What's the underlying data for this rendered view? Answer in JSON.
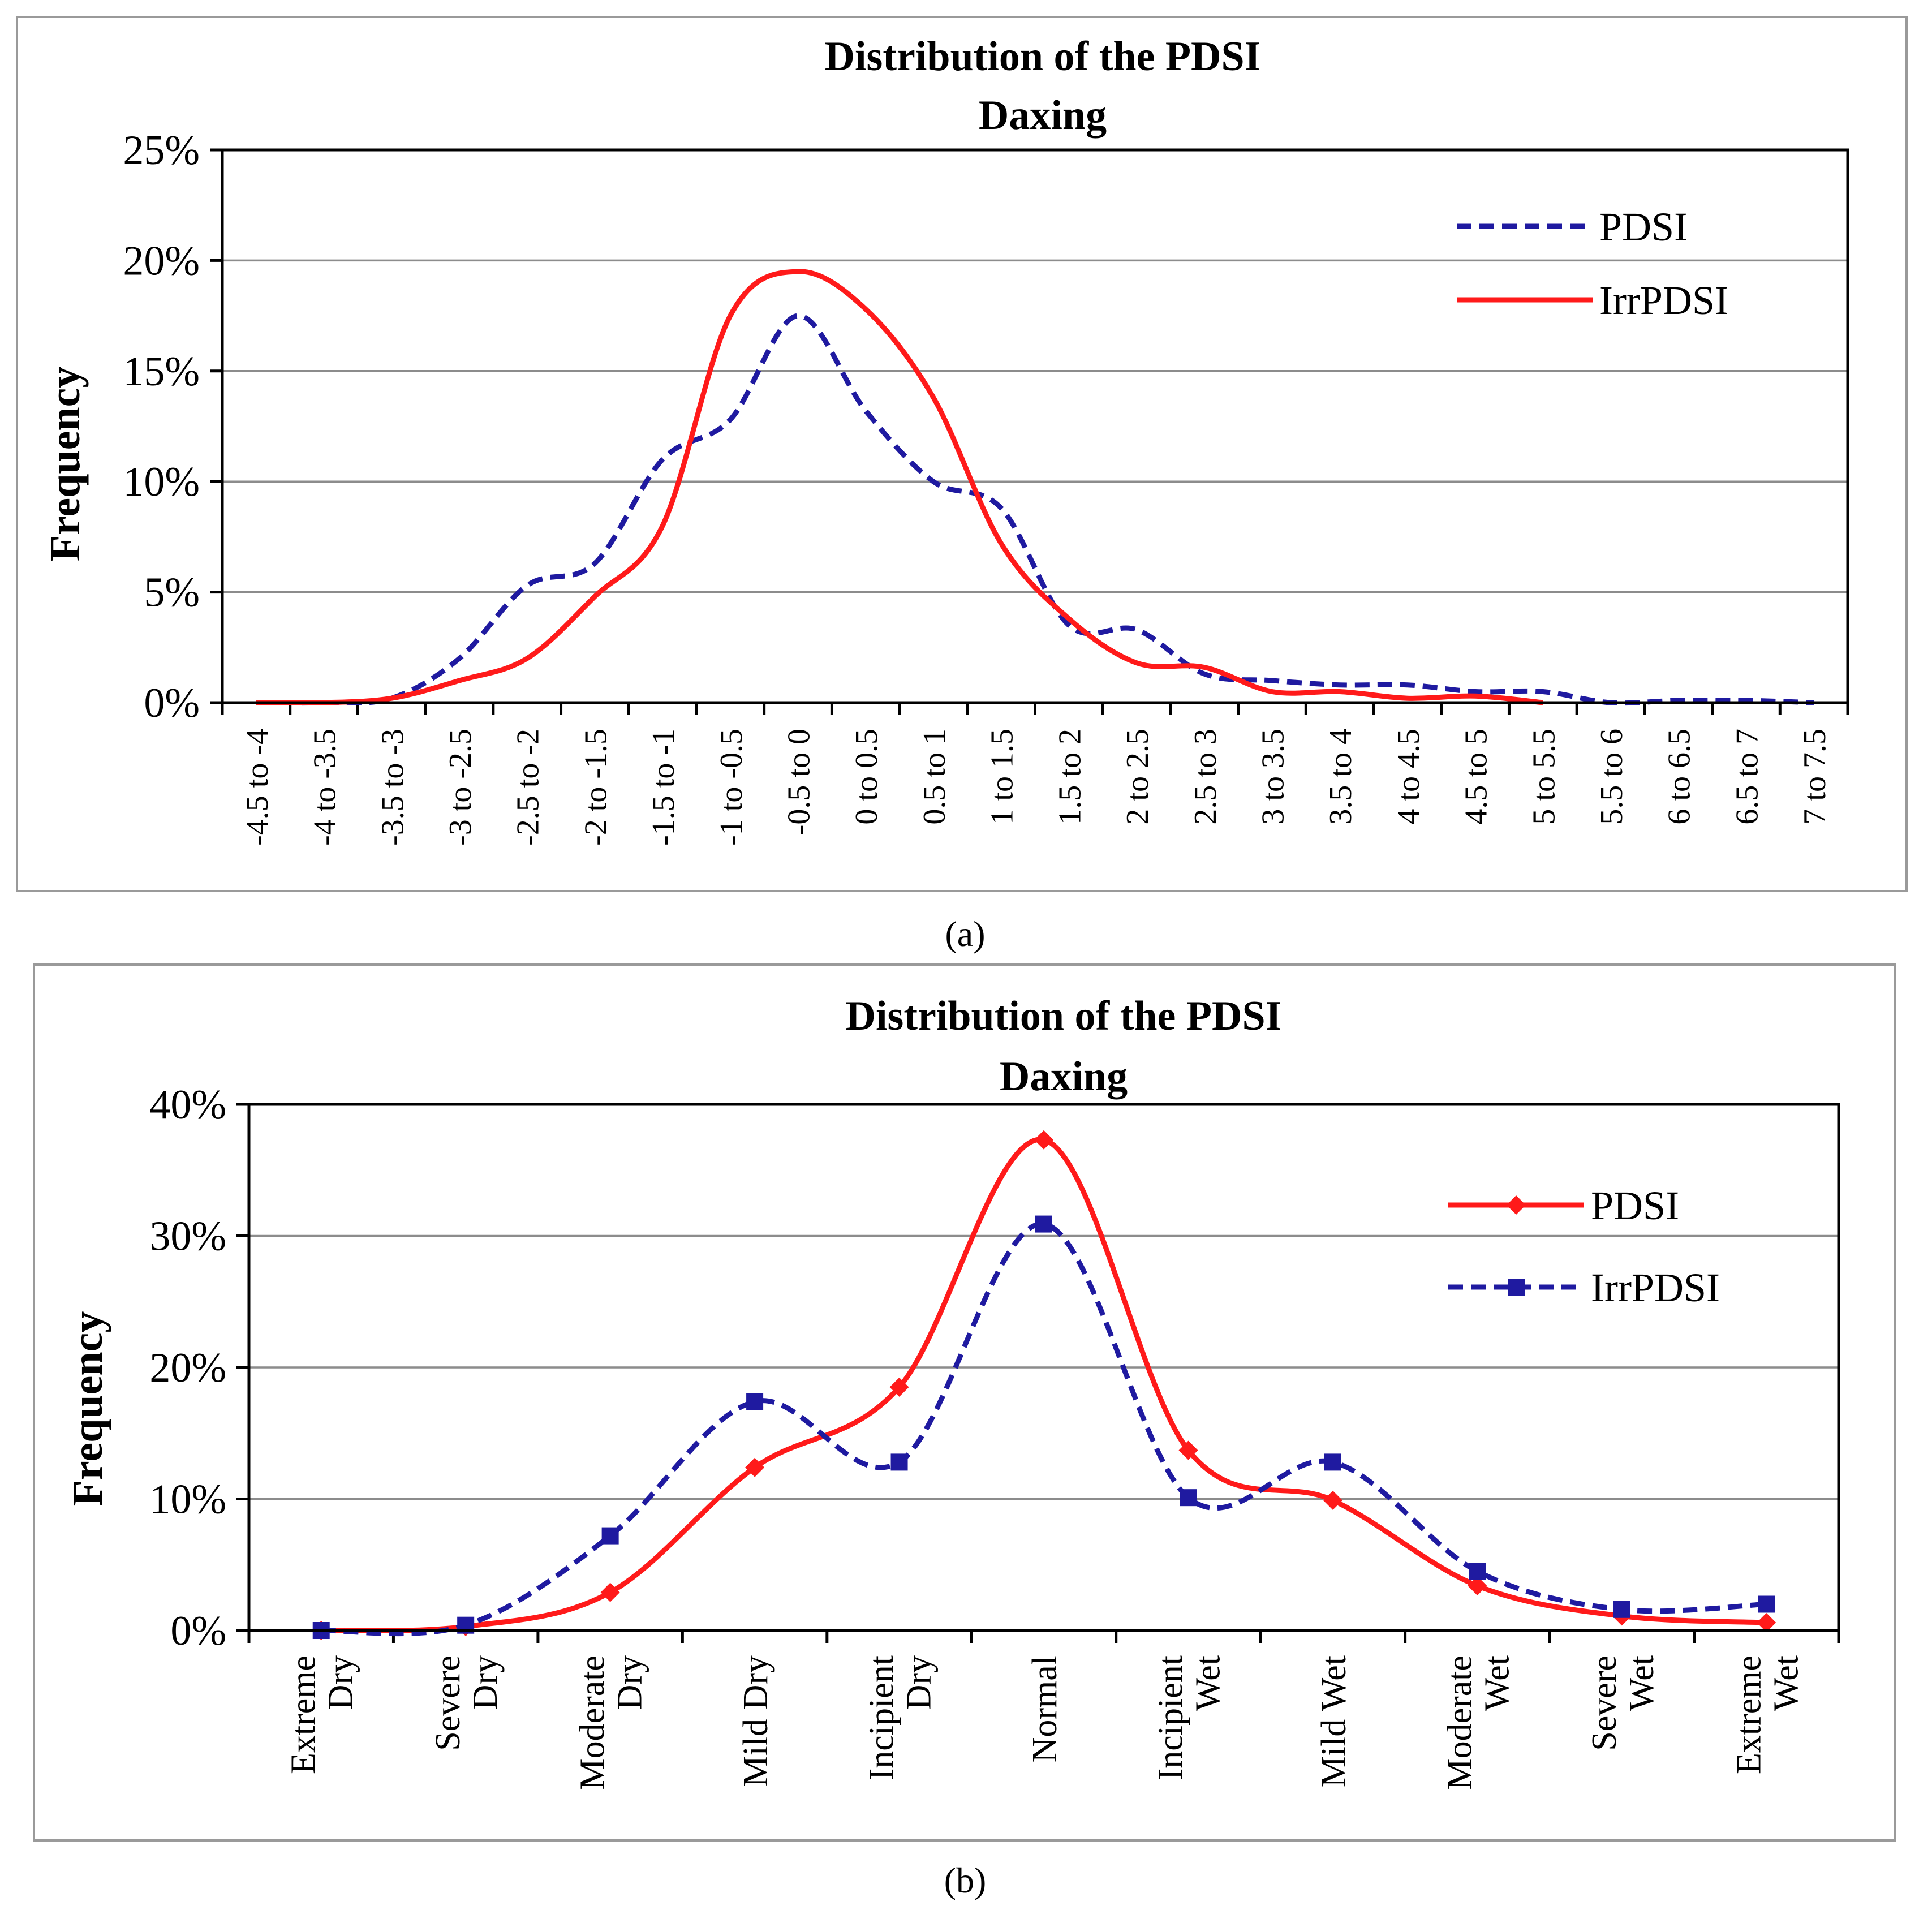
{
  "chart_data": [
    {
      "type": "line",
      "panel_label": "a",
      "title": "Distribution of the PDSI",
      "subtitle": "Daxing",
      "xlabel": "",
      "ylabel": "Frequency",
      "ylim": [
        0,
        25
      ],
      "yticks": [
        "0%",
        "5%",
        "10%",
        "15%",
        "20%",
        "25%"
      ],
      "categories": [
        "-4.5 to -4",
        "-4 to -3.5",
        "-3.5 to -3",
        "-3 to -2.5",
        "-2.5 to -2",
        "-2 to -1.5",
        "-1.5 to -1",
        "-1 to -0.5",
        "-0.5 to 0",
        "0 to 0.5",
        "0.5 to 1",
        "1 to 1.5",
        "1.5 to 2",
        "2 to 2.5",
        "2.5 to 3",
        "3 to 3.5",
        "3.5 to 4",
        "4 to 4.5",
        "4.5 to 5",
        "5 to 5.5",
        "5.5 to 6",
        "6 to 6.5",
        "6.5 to 7",
        "7 to 7.5"
      ],
      "series": [
        {
          "name": "PDSI",
          "color": "#1f1aa0",
          "style": "dashed",
          "values": [
            0.0,
            0.0,
            0.2,
            2.0,
            5.3,
            6.3,
            11.0,
            12.8,
            17.5,
            13.2,
            10.0,
            8.8,
            3.5,
            3.3,
            1.3,
            1.0,
            0.8,
            0.8,
            0.5,
            0.5,
            0.0,
            0.1,
            0.1,
            0.0
          ]
        },
        {
          "name": "IrrPDSI",
          "color": "#ff1a1a",
          "style": "solid",
          "values": [
            0.0,
            0.0,
            0.2,
            1.0,
            2.0,
            4.8,
            8.0,
            17.5,
            19.5,
            17.8,
            13.8,
            7.2,
            3.8,
            1.8,
            1.6,
            0.5,
            0.5,
            0.2,
            0.3,
            0.0,
            null,
            null,
            null,
            null
          ]
        }
      ],
      "legend_position": "top-right",
      "grid": true
    },
    {
      "type": "line",
      "panel_label": "b",
      "title": "Distribution of the PDSI",
      "subtitle": "Daxing",
      "xlabel": "",
      "ylabel": "Frequency",
      "ylim": [
        0,
        40
      ],
      "yticks": [
        "0%",
        "10%",
        "20%",
        "30%",
        "40%"
      ],
      "categories": [
        [
          "Extreme",
          "Dry"
        ],
        [
          "Severe",
          "Dry"
        ],
        [
          "Moderate",
          "Dry"
        ],
        [
          "Mild Dry"
        ],
        [
          "Incipient",
          "Dry"
        ],
        [
          "Normal"
        ],
        [
          "Incipient",
          "Wet"
        ],
        [
          "Mild Wet"
        ],
        [
          "Moderate",
          "Wet"
        ],
        [
          "Severe",
          "Wet"
        ],
        [
          "Extreme",
          "Wet"
        ]
      ],
      "series": [
        {
          "name": "PDSI",
          "color": "#ff1a1a",
          "style": "solid",
          "marker": "diamond",
          "values": [
            0.0,
            0.3,
            2.9,
            12.4,
            18.5,
            37.3,
            13.7,
            9.9,
            3.4,
            1.1,
            0.6
          ]
        },
        {
          "name": "IrrPDSI",
          "color": "#1f1aa0",
          "style": "dashed",
          "marker": "square",
          "values": [
            0.0,
            0.4,
            7.2,
            17.4,
            12.8,
            30.9,
            10.1,
            12.8,
            4.5,
            1.6,
            2.0
          ]
        }
      ],
      "legend_position": "top-right",
      "grid": true
    }
  ],
  "captions": {
    "a": "(a)",
    "b": "(b)"
  }
}
